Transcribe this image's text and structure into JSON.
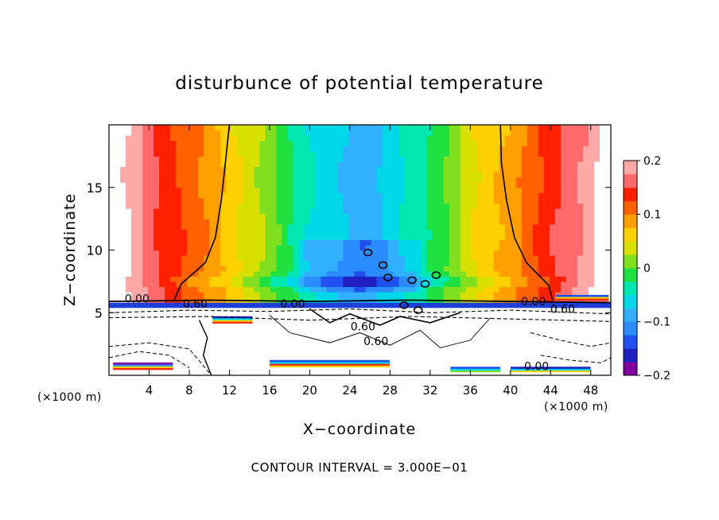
{
  "chart_data": {
    "type": "heatmap",
    "title": "disturbunce of potential temperature",
    "xlabel": "X−coordinate",
    "ylabel": "Z−coordinate",
    "xunit_label": "(×1000 m)",
    "zunit_label": "(×1000 m)",
    "footer": "CONTOUR INTERVAL = 3.000E−01",
    "xlim": [
      0,
      50
    ],
    "ylim": [
      0,
      20
    ],
    "xticks": [
      4,
      8,
      12,
      16,
      20,
      24,
      28,
      32,
      36,
      40,
      44,
      48
    ],
    "yticks": [
      5,
      10,
      15
    ],
    "xtick_labels": [
      "4",
      "8",
      "12",
      "16",
      "20",
      "24",
      "28",
      "32",
      "36",
      "40",
      "44",
      "48"
    ],
    "ytick_labels": [
      "5",
      "10",
      "15"
    ],
    "colorbar": {
      "range": [
        -0.2,
        0.2
      ],
      "ticks": [
        0.2,
        0.1,
        0,
        -0.1,
        -0.2
      ],
      "tick_labels": [
        "0.2",
        "0.1",
        "0",
        "−0.1",
        "−0.2"
      ],
      "colors": [
        "#8000a0",
        "#2020c0",
        "#2050f0",
        "#2a8cff",
        "#30b0ff",
        "#00d8e8",
        "#00e8b0",
        "#20e040",
        "#80e020",
        "#d8e000",
        "#ffd000",
        "#ffa000",
        "#ff6000",
        "#ff2000",
        "#ff6a6a",
        "#ffa8a8"
      ]
    },
    "contour_labels": [
      {
        "text": "0.00",
        "x": 2.8,
        "y": 5.8
      },
      {
        "text": "0.60",
        "x": 8.6,
        "y": 5.4
      },
      {
        "text": "0.00",
        "x": 18.3,
        "y": 5.4
      },
      {
        "text": "0.60",
        "x": 25.3,
        "y": 3.6
      },
      {
        "text": "0.60",
        "x": 26.6,
        "y": 2.4
      },
      {
        "text": "0.00",
        "x": 42.3,
        "y": 5.6
      },
      {
        "text": "0.60",
        "x": 45.2,
        "y": 5.0
      },
      {
        "text": "0.00",
        "x": 42.6,
        "y": 0.4
      }
    ]
  }
}
